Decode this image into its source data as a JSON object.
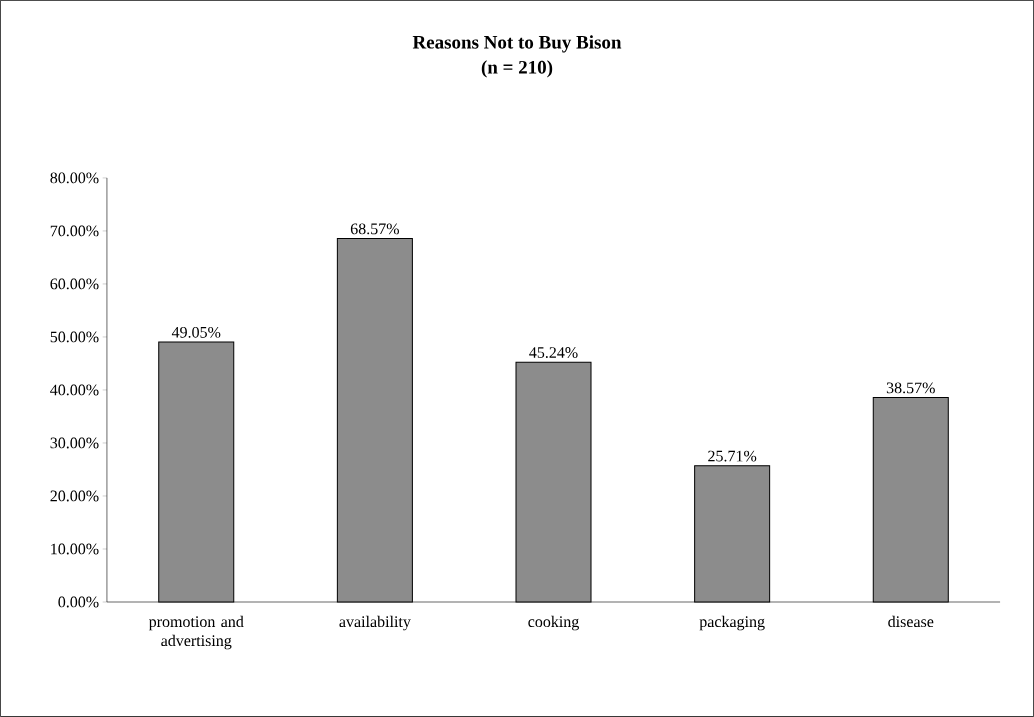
{
  "chart_data": {
    "type": "bar",
    "title": "Reasons Not to Buy Bison",
    "subtitle": "(n = 210)",
    "categories": [
      "promotion and advertising",
      "availability",
      "cooking",
      "packaging",
      "disease"
    ],
    "values": [
      49.05,
      68.57,
      45.24,
      25.71,
      38.57
    ],
    "value_labels": [
      "49.05%",
      "68.57%",
      "45.24%",
      "25.71%",
      "38.57%"
    ],
    "color": "#8c8c8c",
    "ylim": [
      0,
      80
    ],
    "yticks": [
      {
        "value": 0,
        "label": "0.00%"
      },
      {
        "value": 10,
        "label": "10.00%"
      },
      {
        "value": 20,
        "label": "20.00%"
      },
      {
        "value": 30,
        "label": "30.00%"
      },
      {
        "value": 40,
        "label": "40.00%"
      },
      {
        "value": 50,
        "label": "50.00%"
      },
      {
        "value": 60,
        "label": "60.00%"
      },
      {
        "value": 70,
        "label": "70.00%"
      },
      {
        "value": 80,
        "label": "80.00%"
      }
    ]
  }
}
